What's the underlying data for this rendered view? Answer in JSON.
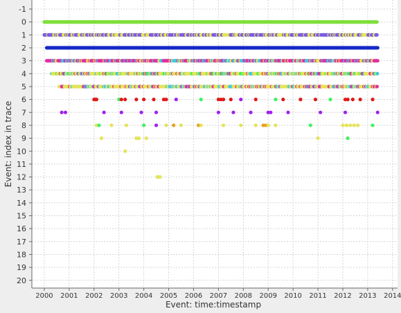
{
  "chart_data": {
    "type": "scatter",
    "xlabel": "Event: time:timestamp",
    "ylabel": "Event: index in trace",
    "xlim": [
      1999.5,
      2014.2
    ],
    "ylim": [
      -1.7,
      20.6
    ],
    "y_axis_inverted": true,
    "grid": true,
    "x_ticks": [
      "2000",
      "2001",
      "2002",
      "2003",
      "2004",
      "2005",
      "2006",
      "2007",
      "2008",
      "2009",
      "2010",
      "2011",
      "2012",
      "2013",
      "2014"
    ],
    "y_ticks": [
      "-1",
      "0",
      "1",
      "2",
      "3",
      "4",
      "5",
      "6",
      "7",
      "8",
      "9",
      "10",
      "11",
      "12",
      "13",
      "14",
      "15",
      "16",
      "17",
      "18",
      "19",
      "20"
    ],
    "colors": {
      "green": "#7ee03a",
      "purple": "#7b5ce6",
      "blue": "#1428c8",
      "yellow": "#e4e45a",
      "magenta": "#e030a0",
      "cyan": "#40c8e8",
      "red": "#e01818",
      "violet": "#a020f0",
      "lime": "#40f060",
      "orange": "#e8a020"
    },
    "series": [
      {
        "index": 0,
        "x_start": 2000.0,
        "x_end": 2013.4,
        "color": "green",
        "dense": true
      },
      {
        "index": 1,
        "x_start": 2000.0,
        "x_end": 2013.4,
        "colors": [
          "purple",
          "yellow"
        ],
        "dense": true
      },
      {
        "index": 2,
        "x_start": 2000.1,
        "x_end": 2013.4,
        "colors": [
          "blue"
        ],
        "dense": true
      },
      {
        "index": 3,
        "x_start": 2000.1,
        "x_end": 2013.4,
        "colors": [
          "magenta",
          "yellow",
          "cyan"
        ],
        "dense": true
      },
      {
        "index": 4,
        "x_start": 2000.3,
        "x_end": 2013.4,
        "colors": [
          "yellow",
          "magenta",
          "cyan",
          "lime"
        ],
        "dense": true
      },
      {
        "index": 5,
        "x_start": 2000.6,
        "x_end": 2013.4,
        "colors": [
          "yellow",
          "cyan",
          "magenta"
        ],
        "dense": true
      },
      {
        "index": 6,
        "points": [
          {
            "x": 2002.0,
            "c": "red"
          },
          {
            "x": 2002.05,
            "c": "red"
          },
          {
            "x": 2002.1,
            "c": "red"
          },
          {
            "x": 2003.0,
            "c": "lime"
          },
          {
            "x": 2003.1,
            "c": "red"
          },
          {
            "x": 2003.25,
            "c": "red"
          },
          {
            "x": 2003.7,
            "c": "red"
          },
          {
            "x": 2004.0,
            "c": "red"
          },
          {
            "x": 2004.4,
            "c": "red"
          },
          {
            "x": 2004.8,
            "c": "red"
          },
          {
            "x": 2004.9,
            "c": "red"
          },
          {
            "x": 2005.3,
            "c": "violet"
          },
          {
            "x": 2006.3,
            "c": "lime"
          },
          {
            "x": 2007.0,
            "c": "red"
          },
          {
            "x": 2007.1,
            "c": "red"
          },
          {
            "x": 2007.2,
            "c": "red"
          },
          {
            "x": 2007.5,
            "c": "red"
          },
          {
            "x": 2007.9,
            "c": "violet"
          },
          {
            "x": 2008.5,
            "c": "red"
          },
          {
            "x": 2009.3,
            "c": "lime"
          },
          {
            "x": 2009.6,
            "c": "red"
          },
          {
            "x": 2010.3,
            "c": "red"
          },
          {
            "x": 2010.9,
            "c": "red"
          },
          {
            "x": 2011.5,
            "c": "lime"
          },
          {
            "x": 2012.1,
            "c": "red"
          },
          {
            "x": 2012.2,
            "c": "red"
          },
          {
            "x": 2012.4,
            "c": "red"
          },
          {
            "x": 2012.7,
            "c": "red"
          },
          {
            "x": 2013.2,
            "c": "red"
          }
        ]
      },
      {
        "index": 7,
        "points": [
          {
            "x": 2000.7,
            "c": "violet"
          },
          {
            "x": 2000.85,
            "c": "violet"
          },
          {
            "x": 2002.4,
            "c": "violet"
          },
          {
            "x": 2003.1,
            "c": "violet"
          },
          {
            "x": 2003.9,
            "c": "violet"
          },
          {
            "x": 2004.5,
            "c": "violet"
          },
          {
            "x": 2007.0,
            "c": "violet"
          },
          {
            "x": 2007.6,
            "c": "violet"
          },
          {
            "x": 2008.3,
            "c": "violet"
          },
          {
            "x": 2009.0,
            "c": "violet"
          },
          {
            "x": 2009.1,
            "c": "violet"
          },
          {
            "x": 2009.8,
            "c": "violet"
          },
          {
            "x": 2011.1,
            "c": "violet"
          },
          {
            "x": 2012.1,
            "c": "violet"
          },
          {
            "x": 2013.4,
            "c": "violet"
          }
        ]
      },
      {
        "index": 8,
        "points": [
          {
            "x": 2002.1,
            "c": "yellow"
          },
          {
            "x": 2002.2,
            "c": "lime"
          },
          {
            "x": 2002.7,
            "c": "yellow"
          },
          {
            "x": 2003.3,
            "c": "yellow"
          },
          {
            "x": 2004.0,
            "c": "lime"
          },
          {
            "x": 2004.5,
            "c": "violet"
          },
          {
            "x": 2004.9,
            "c": "yellow"
          },
          {
            "x": 2005.2,
            "c": "orange"
          },
          {
            "x": 2005.5,
            "c": "yellow"
          },
          {
            "x": 2006.2,
            "c": "orange"
          },
          {
            "x": 2006.3,
            "c": "yellow"
          },
          {
            "x": 2007.2,
            "c": "yellow"
          },
          {
            "x": 2007.9,
            "c": "yellow"
          },
          {
            "x": 2008.5,
            "c": "yellow"
          },
          {
            "x": 2008.8,
            "c": "orange"
          },
          {
            "x": 2008.9,
            "c": "orange"
          },
          {
            "x": 2009.0,
            "c": "yellow"
          },
          {
            "x": 2009.3,
            "c": "yellow"
          },
          {
            "x": 2010.7,
            "c": "lime"
          },
          {
            "x": 2012.0,
            "c": "yellow"
          },
          {
            "x": 2012.15,
            "c": "yellow"
          },
          {
            "x": 2012.3,
            "c": "yellow"
          },
          {
            "x": 2012.45,
            "c": "yellow"
          },
          {
            "x": 2012.6,
            "c": "yellow"
          },
          {
            "x": 2013.2,
            "c": "lime"
          }
        ]
      },
      {
        "index": 9,
        "points": [
          {
            "x": 2002.3,
            "c": "yellow"
          },
          {
            "x": 2003.7,
            "c": "yellow"
          },
          {
            "x": 2003.8,
            "c": "yellow"
          },
          {
            "x": 2004.1,
            "c": "yellow"
          },
          {
            "x": 2011.0,
            "c": "yellow"
          },
          {
            "x": 2012.2,
            "c": "lime"
          }
        ]
      },
      {
        "index": 10,
        "points": [
          {
            "x": 2003.25,
            "c": "yellow"
          }
        ]
      },
      {
        "index": 12,
        "points": [
          {
            "x": 2004.55,
            "c": "yellow"
          },
          {
            "x": 2004.6,
            "c": "yellow"
          },
          {
            "x": 2004.65,
            "c": "yellow"
          }
        ]
      }
    ]
  }
}
